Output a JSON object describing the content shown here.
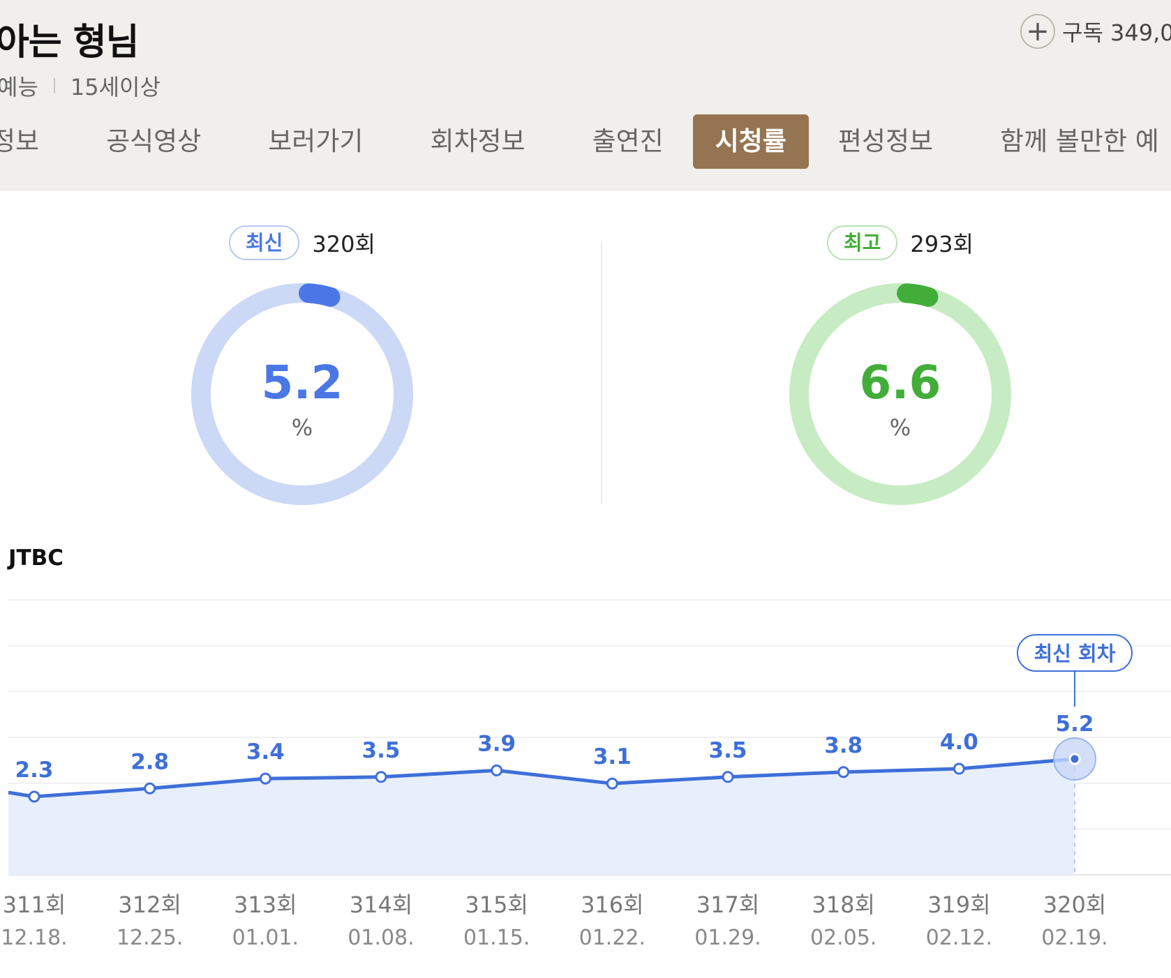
{
  "show": {
    "title": "아는 형님",
    "genre": "예능",
    "age_rating": "15세이상",
    "subscribe_label": "구독 349,0"
  },
  "tabs": [
    {
      "label": "정보",
      "visible_text": "정보",
      "active": false
    },
    {
      "label": "공식영상",
      "active": false
    },
    {
      "label": "보러가기",
      "active": false
    },
    {
      "label": "회차정보",
      "active": false
    },
    {
      "label": "출연진",
      "active": false
    },
    {
      "label": "시청률",
      "active": true
    },
    {
      "label": "편성정보",
      "active": false
    },
    {
      "label": "함께 볼만한 예",
      "active": false
    }
  ],
  "ratings": {
    "latest": {
      "badge": "최신",
      "episode": "320회",
      "value": "5.2",
      "unit": "%",
      "color": "#4a77e5",
      "track_color": "#cbd8f6"
    },
    "highest": {
      "badge": "최고",
      "episode": "293회",
      "value": "6.6",
      "unit": "%",
      "color": "#42ad39",
      "track_color": "#c7ebc3"
    }
  },
  "channel": "JTBC",
  "chart_data": {
    "type": "line",
    "x": [
      "311회",
      "312회",
      "313회",
      "314회",
      "315회",
      "316회",
      "317회",
      "318회",
      "319회",
      "320회"
    ],
    "dates": [
      "12.18.",
      "12.25.",
      "01.01.",
      "01.08.",
      "01.15.",
      "01.22.",
      "01.29.",
      "02.05.",
      "02.12.",
      "02.19."
    ],
    "series": [
      {
        "values": [
          2.3,
          2.8,
          3.4,
          3.5,
          3.9,
          3.1,
          3.5,
          3.8,
          4.0,
          5.2
        ]
      }
    ],
    "value_labels": [
      "2.3",
      "2.8",
      "3.4",
      "3.5",
      "3.9",
      "3.1",
      "3.5",
      "3.8",
      "4.0",
      "5.2"
    ],
    "latest_badge": "최신 회차",
    "line_color": "#3e6fd9",
    "fill_color": "#e8effc",
    "grid": true
  }
}
